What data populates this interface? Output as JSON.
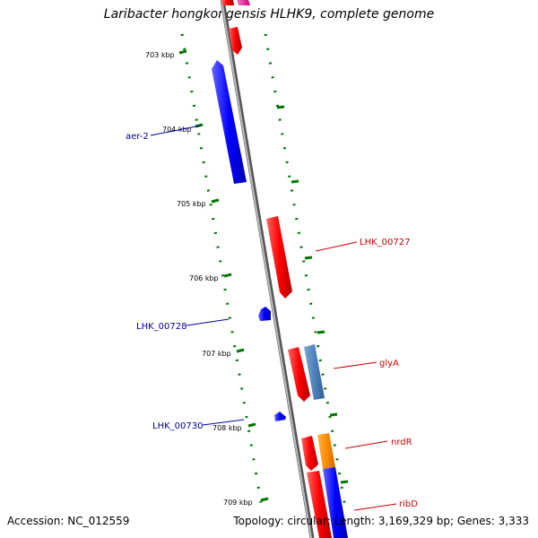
{
  "title": "Laribacter hongkongensis HLHK9, complete genome",
  "accession_label": "Accession: NC_012559",
  "stats_label": "Topology: circular; Length: 3,169,329 bp; Genes: 3,333",
  "ticks": [
    "703 kbp",
    "704 kbp",
    "705 kbp",
    "706 kbp",
    "707 kbp",
    "708 kbp",
    "709 kbp"
  ],
  "genes": {
    "aer_2": "aer-2",
    "lhk_00727": "LHK_00727",
    "lhk_00728": "LHK_00728",
    "glyA": "glyA",
    "lhk_00730": "LHK_00730",
    "nrdR": "nrdR",
    "ribD": "ribD"
  },
  "colors": {
    "forward": "#ff0000",
    "reverse": "#0000ff",
    "trna": "#4f81bd",
    "orange": "#ff8c00",
    "backbone": "#888888",
    "tick": "#007700"
  }
}
